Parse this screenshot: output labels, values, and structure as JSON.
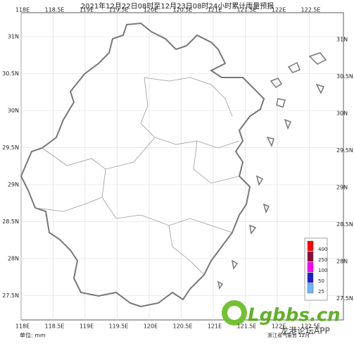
{
  "map": {
    "title": "2021年12月22日08时至12月23日08时24小时累计雨量预报",
    "lon_labels": [
      "118E",
      "118.5E",
      "119E",
      "119.5E",
      "120E",
      "120.5E",
      "121E",
      "121.5E",
      "122E",
      "122.5E"
    ],
    "lat_labels": [
      "31N",
      "30.5N",
      "30N",
      "29.5N",
      "29N",
      "28.5N",
      "28N",
      "27.5N"
    ],
    "legend": {
      "labels": [
        "400",
        "250",
        "100",
        "50",
        "25"
      ],
      "colors": [
        "#ff0000",
        "#8b0a3c",
        "#ff00ff",
        "#1e1ed2",
        "#6fb4f5"
      ]
    },
    "unit": "单位: mm",
    "footer": "浙江省气象台 12月",
    "watermark": {
      "brand": "Lgbbs.cn",
      "app": "龙港论坛APP"
    }
  }
}
